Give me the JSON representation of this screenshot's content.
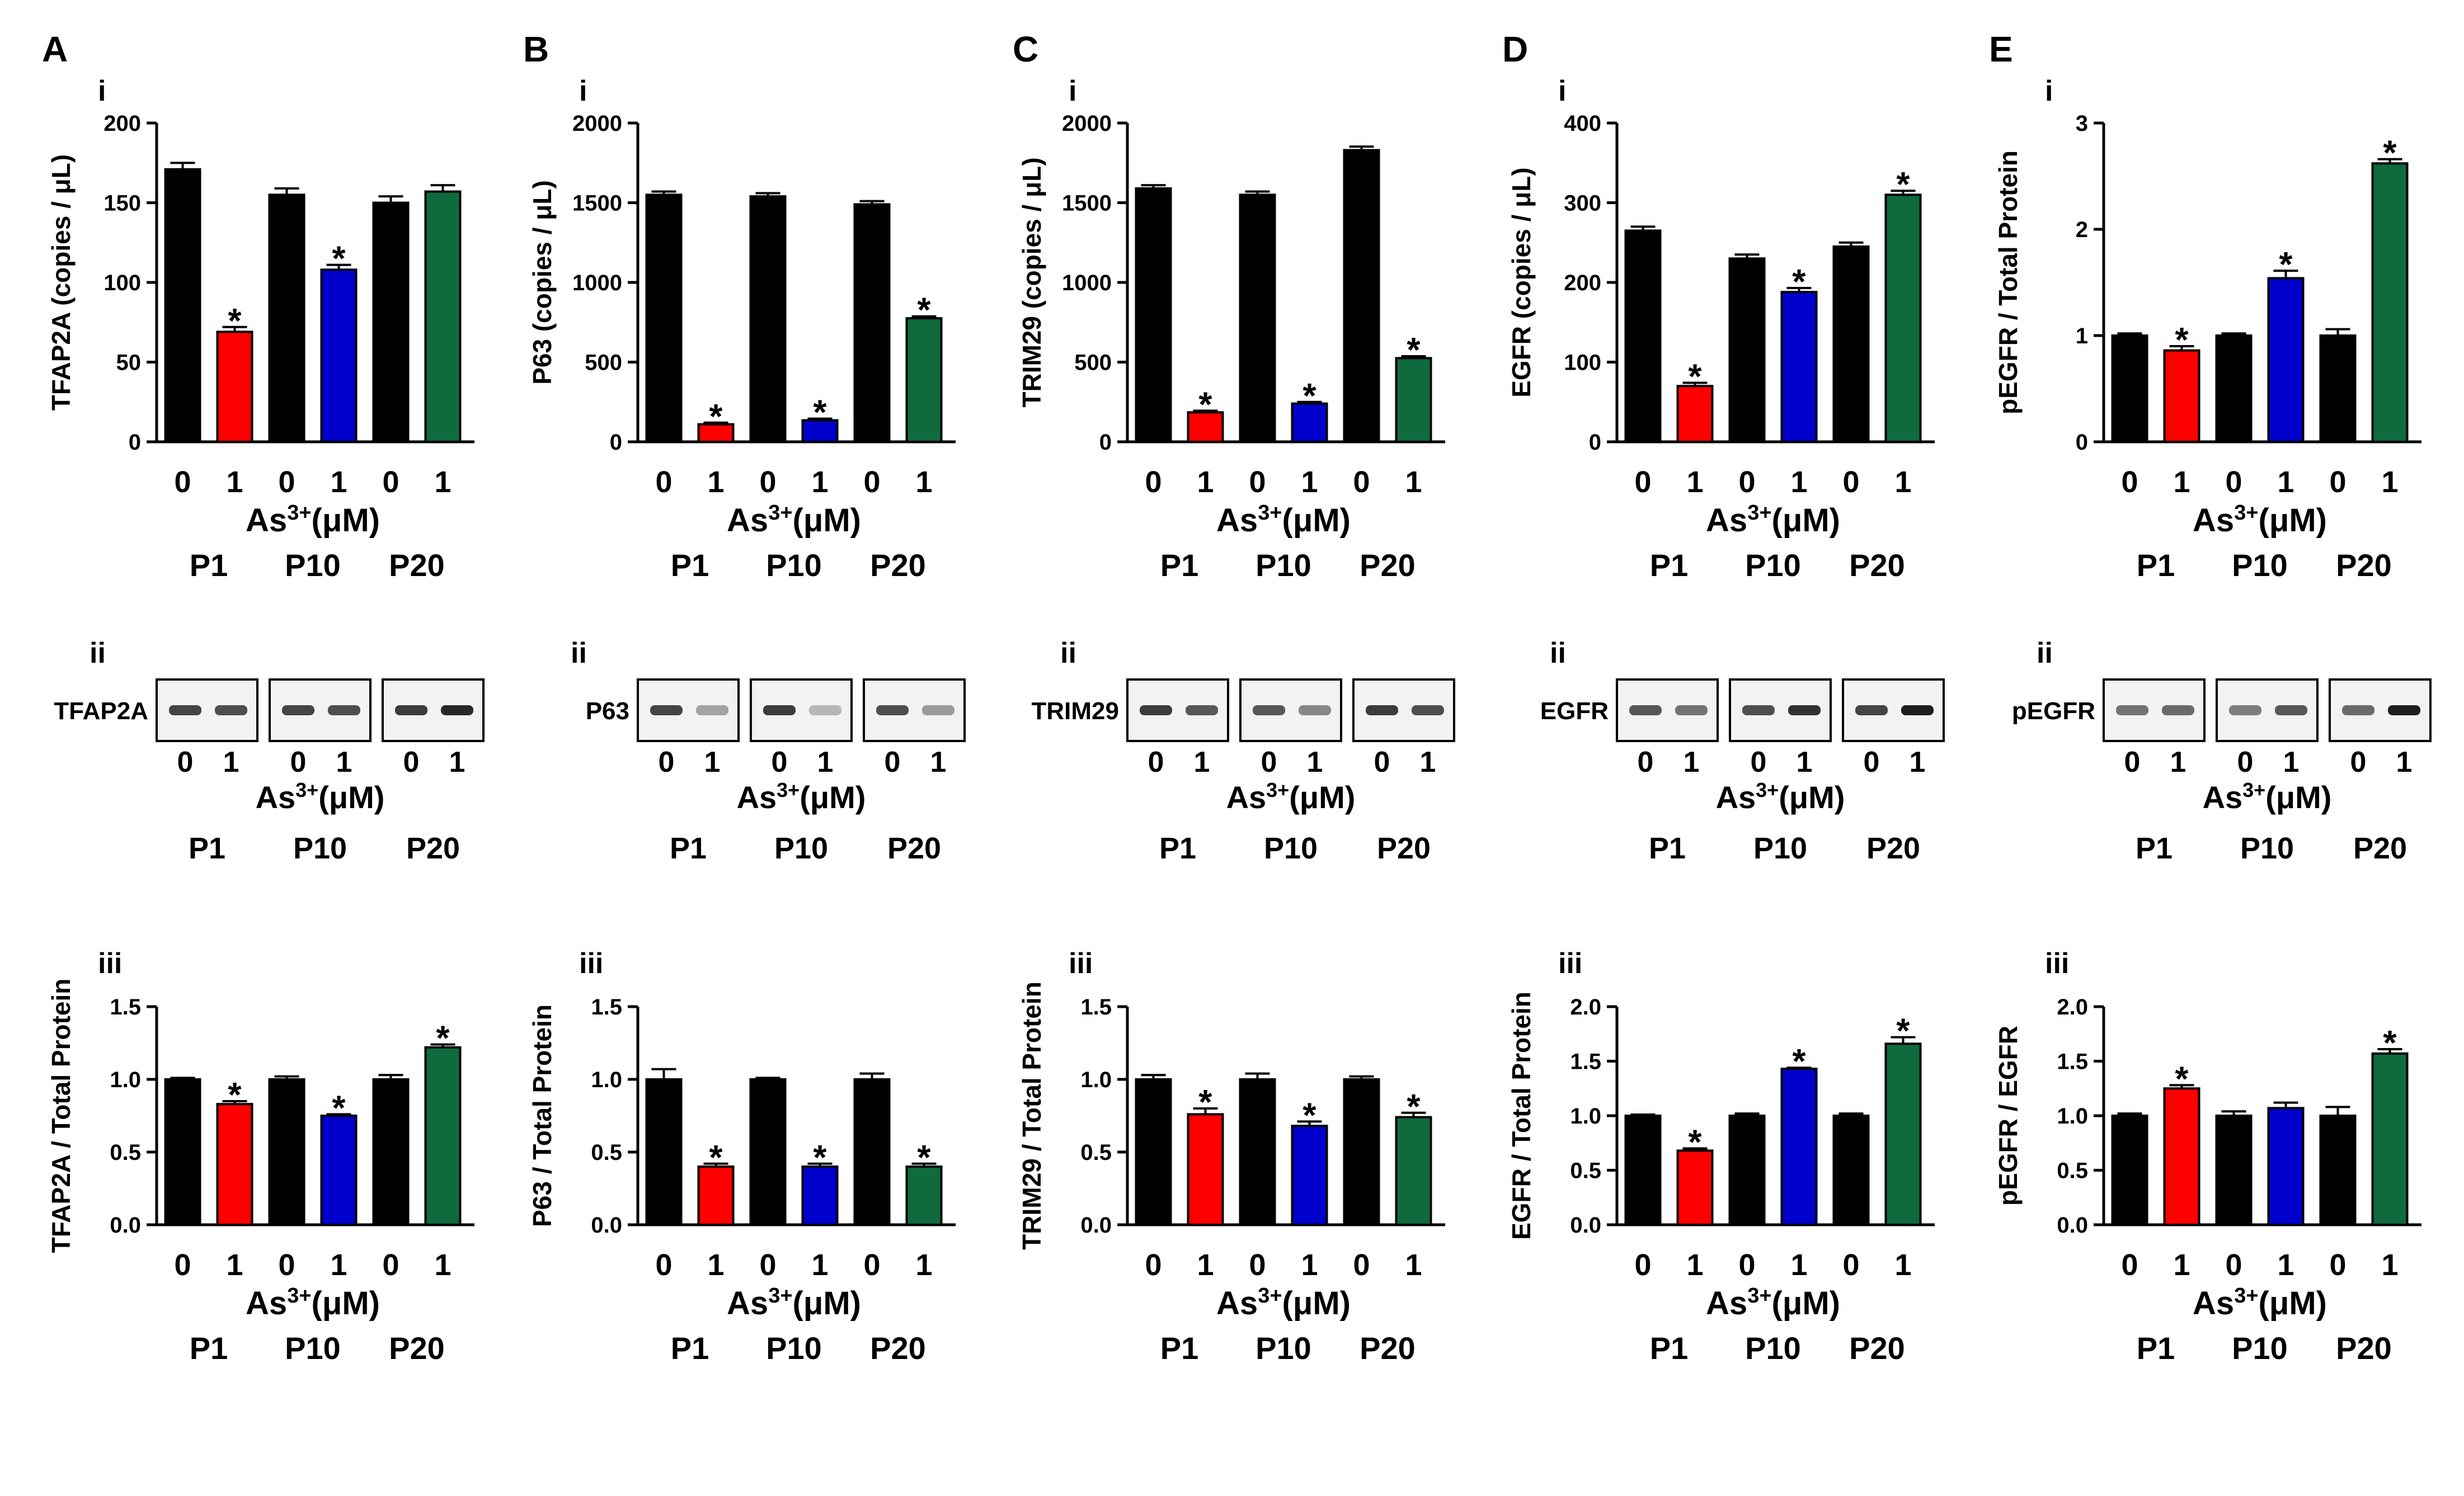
{
  "figure": {
    "dose_unit": "(μM)",
    "ion_base": "As",
    "ion_sup": "3+",
    "section_labels": {
      "i": "i",
      "ii": "ii",
      "iii": "iii"
    },
    "colors": {
      "control": "#000000",
      "P1": "#ff0000",
      "P10": "#0000cc",
      "P20": "#0f6a3e"
    }
  },
  "chart_data": [
    {
      "panel": "A",
      "row": "i",
      "type": "bar",
      "ylabel": "TFAP2A (copies / μL)",
      "yticks": [
        "0",
        "50",
        "100",
        "150",
        "200"
      ],
      "ylim": [
        0,
        200
      ],
      "categories": [
        "0",
        "1",
        "0",
        "1",
        "0",
        "1"
      ],
      "groups": [
        "P1",
        "P10",
        "P20"
      ],
      "values": [
        171,
        69,
        155,
        108,
        150,
        157
      ],
      "errors": [
        4,
        3,
        4,
        3,
        4,
        4
      ],
      "significant": [
        false,
        true,
        false,
        true,
        false,
        false
      ],
      "bar_colors": [
        "#000000",
        "#ff0000",
        "#000000",
        "#0000cc",
        "#000000",
        "#0f6a3e"
      ]
    },
    {
      "panel": "B",
      "row": "i",
      "type": "bar",
      "ylabel": "P63 (copies / μL)",
      "yticks": [
        "0",
        "500",
        "1000",
        "1500",
        "2000"
      ],
      "ylim": [
        0,
        2000
      ],
      "categories": [
        "0",
        "1",
        "0",
        "1",
        "0",
        "1"
      ],
      "groups": [
        "P1",
        "P10",
        "P20"
      ],
      "values": [
        1550,
        110,
        1540,
        135,
        1490,
        775
      ],
      "errors": [
        20,
        10,
        20,
        10,
        20,
        12
      ],
      "significant": [
        false,
        true,
        false,
        true,
        false,
        true
      ],
      "bar_colors": [
        "#000000",
        "#ff0000",
        "#000000",
        "#0000cc",
        "#000000",
        "#0f6a3e"
      ]
    },
    {
      "panel": "C",
      "row": "i",
      "type": "bar",
      "ylabel": "TRIM29 (copies / μL)",
      "yticks": [
        "0",
        "500",
        "1000",
        "1500",
        "2000"
      ],
      "ylim": [
        0,
        2000
      ],
      "categories": [
        "0",
        "1",
        "0",
        "1",
        "0",
        "1"
      ],
      "groups": [
        "P1",
        "P10",
        "P20"
      ],
      "values": [
        1590,
        185,
        1550,
        240,
        1830,
        525
      ],
      "errors": [
        20,
        10,
        20,
        10,
        22,
        12
      ],
      "significant": [
        false,
        true,
        false,
        true,
        false,
        true
      ],
      "bar_colors": [
        "#000000",
        "#ff0000",
        "#000000",
        "#0000cc",
        "#000000",
        "#0f6a3e"
      ]
    },
    {
      "panel": "D",
      "row": "i",
      "type": "bar",
      "ylabel": "EGFR (copies / μL)",
      "yticks": [
        "0",
        "100",
        "200",
        "300",
        "400"
      ],
      "ylim": [
        0,
        400
      ],
      "categories": [
        "0",
        "1",
        "0",
        "1",
        "0",
        "1"
      ],
      "groups": [
        "P1",
        "P10",
        "P20"
      ],
      "values": [
        265,
        70,
        230,
        188,
        245,
        310
      ],
      "errors": [
        5,
        4,
        5,
        5,
        5,
        5
      ],
      "significant": [
        false,
        true,
        false,
        true,
        false,
        true
      ],
      "bar_colors": [
        "#000000",
        "#ff0000",
        "#000000",
        "#0000cc",
        "#000000",
        "#0f6a3e"
      ]
    },
    {
      "panel": "E",
      "row": "i",
      "type": "bar",
      "ylabel": "pEGFR / Total Protein",
      "yticks": [
        "0",
        "1",
        "2",
        "3"
      ],
      "ylim": [
        0,
        3
      ],
      "categories": [
        "0",
        "1",
        "0",
        "1",
        "0",
        "1"
      ],
      "groups": [
        "P1",
        "P10",
        "P20"
      ],
      "values": [
        1.0,
        0.86,
        1.0,
        1.54,
        1.0,
        2.62
      ],
      "errors": [
        0.02,
        0.04,
        0.02,
        0.07,
        0.06,
        0.04
      ],
      "significant": [
        false,
        true,
        false,
        true,
        false,
        true
      ],
      "bar_colors": [
        "#000000",
        "#ff0000",
        "#000000",
        "#0000cc",
        "#000000",
        "#0f6a3e"
      ]
    },
    {
      "panel": "A",
      "row": "iii",
      "type": "bar",
      "ylabel": "TFAP2A / Total Protein",
      "yticks": [
        "0.0",
        "0.5",
        "1.0",
        "1.5"
      ],
      "ylim": [
        0,
        1.5
      ],
      "categories": [
        "0",
        "1",
        "0",
        "1",
        "0",
        "1"
      ],
      "groups": [
        "P1",
        "P10",
        "P20"
      ],
      "values": [
        1.0,
        0.83,
        1.0,
        0.75,
        1.0,
        1.22
      ],
      "errors": [
        0.01,
        0.02,
        0.02,
        0.01,
        0.03,
        0.02
      ],
      "significant": [
        false,
        true,
        false,
        true,
        false,
        true
      ],
      "bar_colors": [
        "#000000",
        "#ff0000",
        "#000000",
        "#0000cc",
        "#000000",
        "#0f6a3e"
      ]
    },
    {
      "panel": "B",
      "row": "iii",
      "type": "bar",
      "ylabel": "P63 / Total Protein",
      "yticks": [
        "0.0",
        "0.5",
        "1.0",
        "1.5"
      ],
      "ylim": [
        0,
        1.5
      ],
      "categories": [
        "0",
        "1",
        "0",
        "1",
        "0",
        "1"
      ],
      "groups": [
        "P1",
        "P10",
        "P20"
      ],
      "values": [
        1.0,
        0.4,
        1.0,
        0.4,
        1.0,
        0.4
      ],
      "errors": [
        0.07,
        0.02,
        0.01,
        0.02,
        0.04,
        0.02
      ],
      "significant": [
        false,
        true,
        false,
        true,
        false,
        true
      ],
      "bar_colors": [
        "#000000",
        "#ff0000",
        "#000000",
        "#0000cc",
        "#000000",
        "#0f6a3e"
      ]
    },
    {
      "panel": "C",
      "row": "iii",
      "type": "bar",
      "ylabel": "TRIM29 / Total Protein",
      "yticks": [
        "0.0",
        "0.5",
        "1.0",
        "1.5"
      ],
      "ylim": [
        0,
        1.5
      ],
      "categories": [
        "0",
        "1",
        "0",
        "1",
        "0",
        "1"
      ],
      "groups": [
        "P1",
        "P10",
        "P20"
      ],
      "values": [
        1.0,
        0.76,
        1.0,
        0.68,
        1.0,
        0.74
      ],
      "errors": [
        0.03,
        0.04,
        0.04,
        0.03,
        0.02,
        0.03
      ],
      "significant": [
        false,
        true,
        false,
        true,
        false,
        true
      ],
      "bar_colors": [
        "#000000",
        "#ff0000",
        "#000000",
        "#0000cc",
        "#000000",
        "#0f6a3e"
      ]
    },
    {
      "panel": "D",
      "row": "iii",
      "type": "bar",
      "ylabel": "EGFR / Total Protein",
      "yticks": [
        "0.0",
        "0.5",
        "1.0",
        "1.5",
        "2.0"
      ],
      "ylim": [
        0,
        2.0
      ],
      "categories": [
        "0",
        "1",
        "0",
        "1",
        "0",
        "1"
      ],
      "groups": [
        "P1",
        "P10",
        "P20"
      ],
      "values": [
        1.0,
        0.68,
        1.0,
        1.43,
        1.0,
        1.66
      ],
      "errors": [
        0.01,
        0.02,
        0.02,
        0.01,
        0.02,
        0.06
      ],
      "significant": [
        false,
        true,
        false,
        true,
        false,
        true
      ],
      "bar_colors": [
        "#000000",
        "#ff0000",
        "#000000",
        "#0000cc",
        "#000000",
        "#0f6a3e"
      ]
    },
    {
      "panel": "E",
      "row": "iii",
      "type": "bar",
      "ylabel": "pEGFR / EGFR",
      "yticks": [
        "0.0",
        "0.5",
        "1.0",
        "1.5",
        "2.0"
      ],
      "ylim": [
        0,
        2.0
      ],
      "categories": [
        "0",
        "1",
        "0",
        "1",
        "0",
        "1"
      ],
      "groups": [
        "P1",
        "P10",
        "P20"
      ],
      "values": [
        1.0,
        1.25,
        1.0,
        1.07,
        1.0,
        1.57
      ],
      "errors": [
        0.02,
        0.03,
        0.04,
        0.05,
        0.08,
        0.04
      ],
      "significant": [
        false,
        true,
        false,
        false,
        false,
        true
      ],
      "bar_colors": [
        "#000000",
        "#ff0000",
        "#000000",
        "#0000cc",
        "#000000",
        "#0f6a3e"
      ]
    }
  ],
  "blots": [
    {
      "panel": "A",
      "row": "ii",
      "label": "TFAP2A",
      "lanes": [
        "0",
        "1",
        "0",
        "1",
        "0",
        "1"
      ],
      "groups": [
        "P1",
        "P10",
        "P20"
      ],
      "band_intensity": [
        0.8,
        0.75,
        0.8,
        0.75,
        0.85,
        0.95
      ]
    },
    {
      "panel": "B",
      "row": "ii",
      "label": "P63",
      "lanes": [
        "0",
        "1",
        "0",
        "1",
        "0",
        "1"
      ],
      "groups": [
        "P1",
        "P10",
        "P20"
      ],
      "band_intensity": [
        0.8,
        0.3,
        0.85,
        0.2,
        0.75,
        0.35
      ]
    },
    {
      "panel": "C",
      "row": "ii",
      "label": "TRIM29",
      "lanes": [
        "0",
        "1",
        "0",
        "1",
        "0",
        "1"
      ],
      "groups": [
        "P1",
        "P10",
        "P20"
      ],
      "band_intensity": [
        0.85,
        0.7,
        0.7,
        0.45,
        0.85,
        0.75
      ]
    },
    {
      "panel": "D",
      "row": "ii",
      "label": "EGFR",
      "lanes": [
        "0",
        "1",
        "0",
        "1",
        "0",
        "1"
      ],
      "groups": [
        "P1",
        "P10",
        "P20"
      ],
      "band_intensity": [
        0.7,
        0.55,
        0.75,
        0.9,
        0.8,
        1.0
      ]
    },
    {
      "panel": "E",
      "row": "ii",
      "label": "pEGFR",
      "lanes": [
        "0",
        "1",
        "0",
        "1",
        "0",
        "1"
      ],
      "groups": [
        "P1",
        "P10",
        "P20"
      ],
      "band_intensity": [
        0.55,
        0.6,
        0.5,
        0.7,
        0.6,
        1.0
      ]
    }
  ]
}
